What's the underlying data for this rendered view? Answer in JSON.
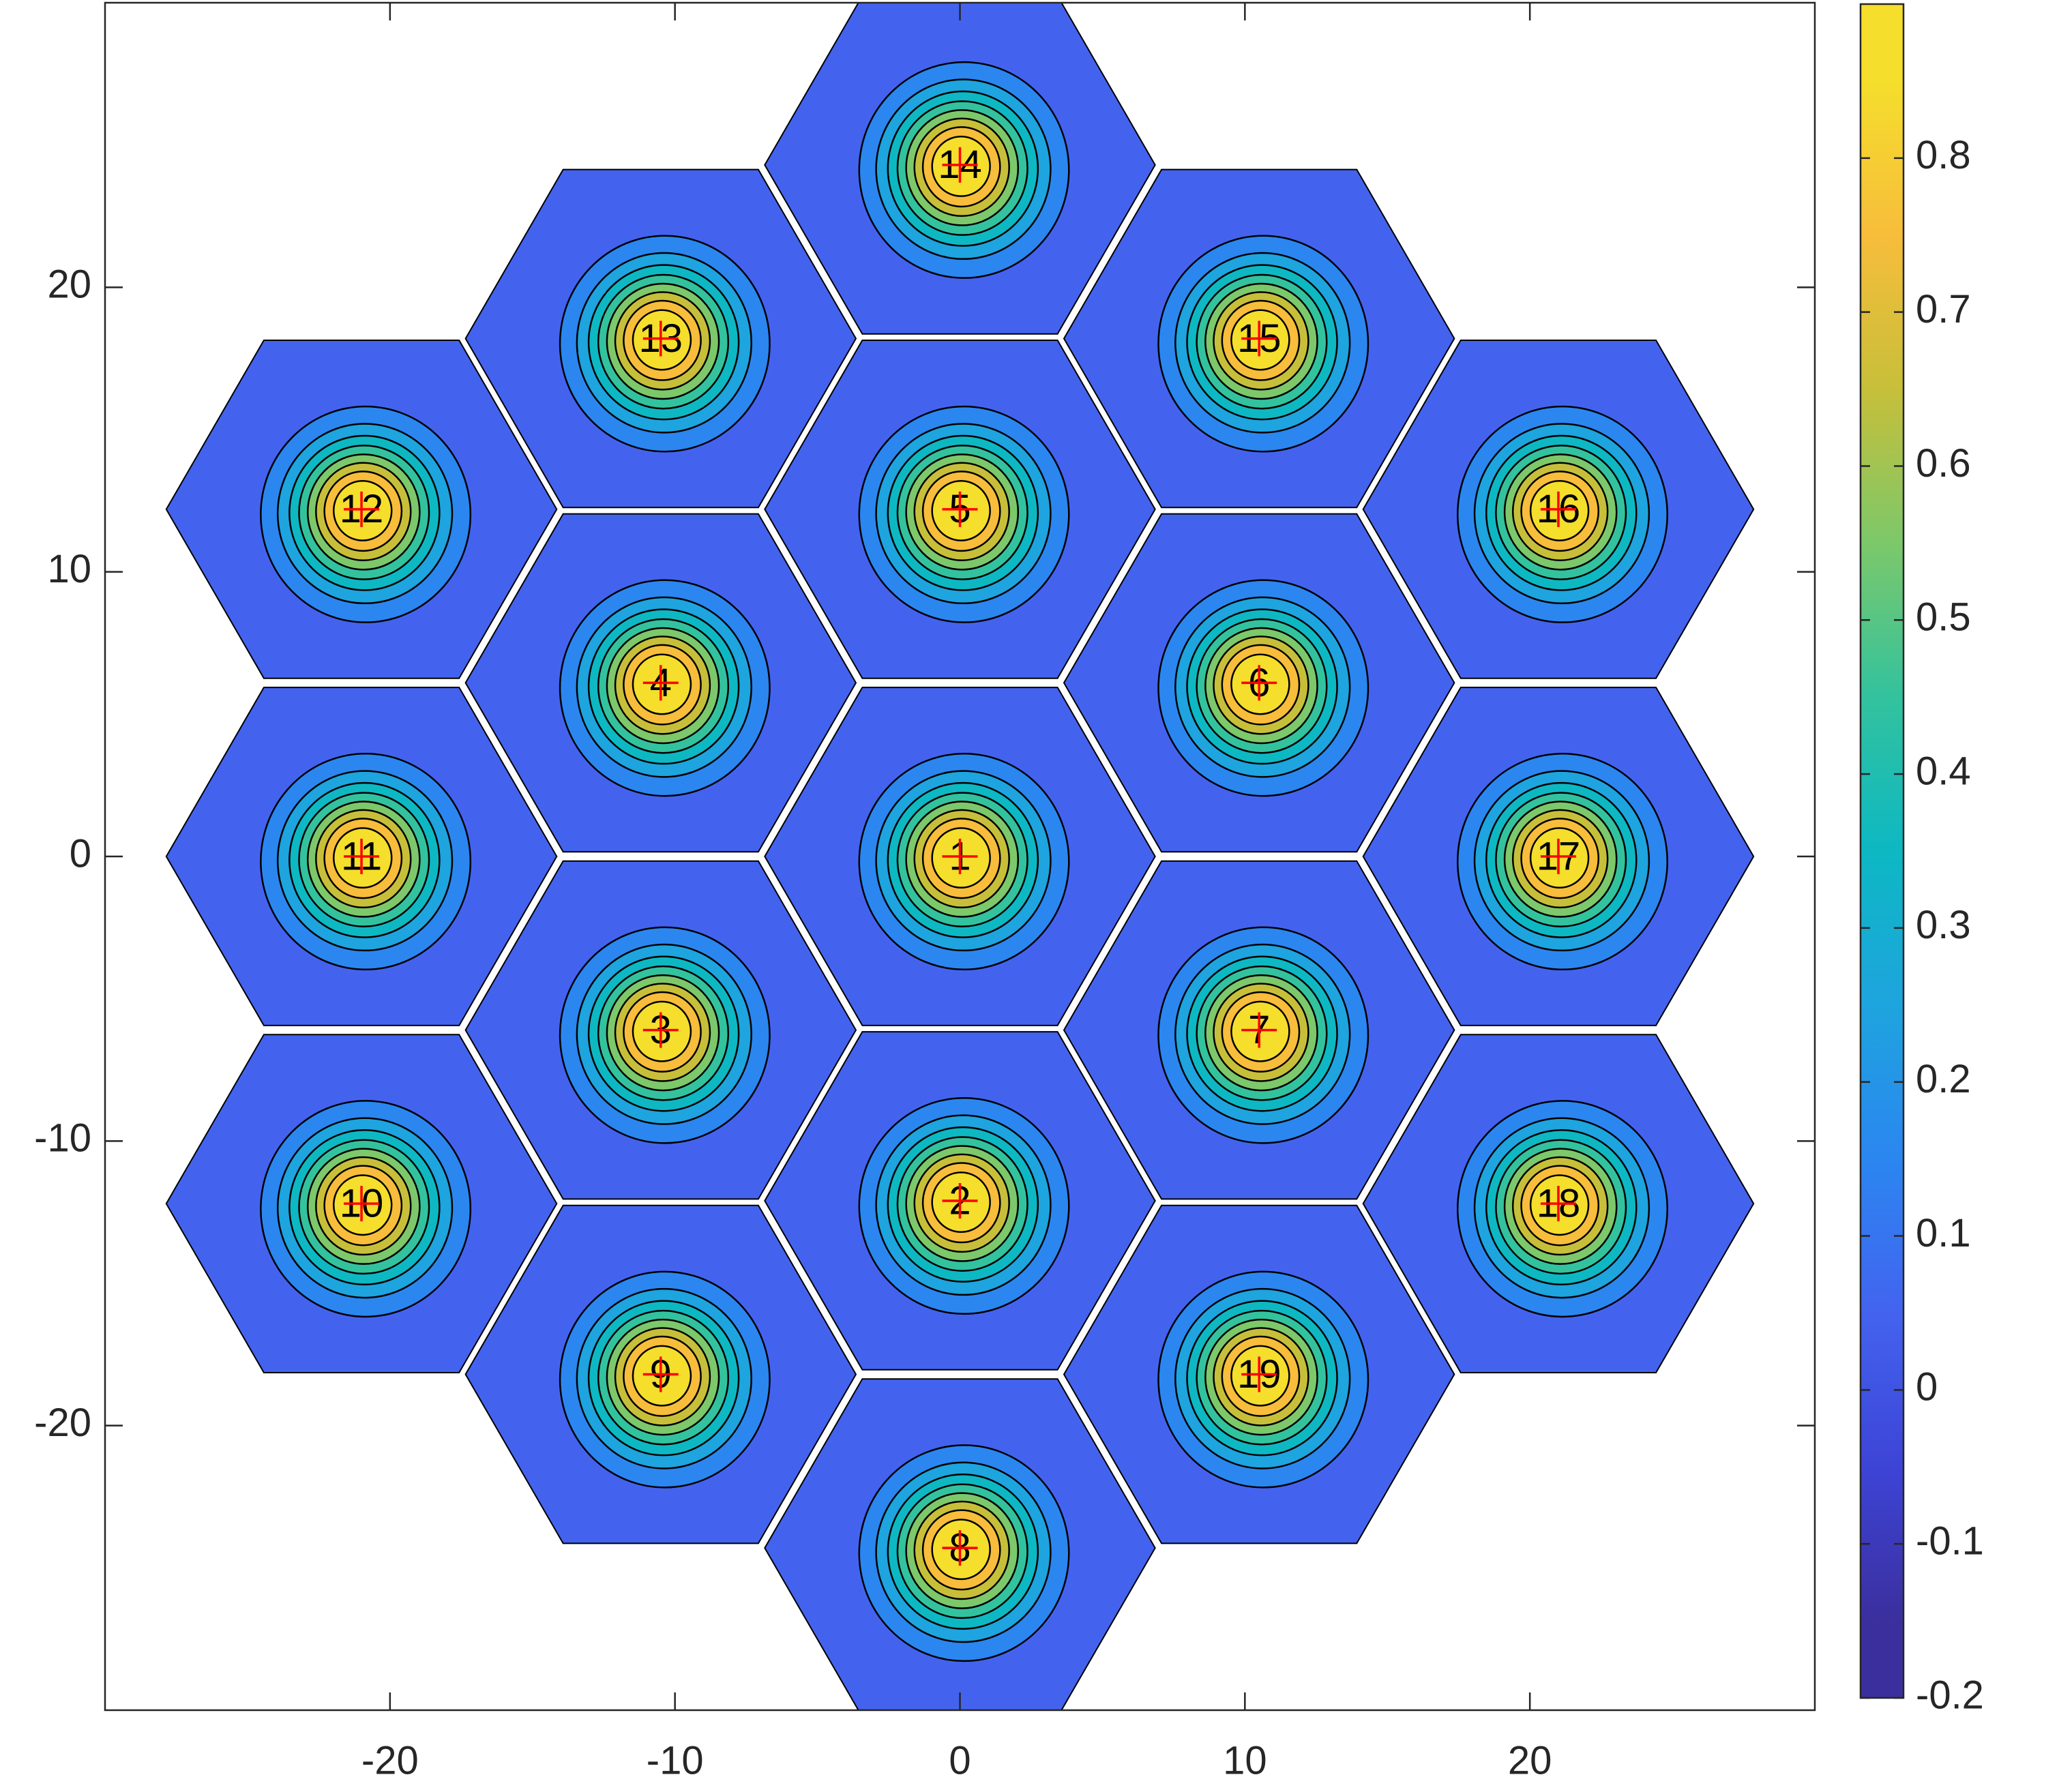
{
  "chart_data": {
    "type": "hexcontour",
    "xlim": [
      -30,
      30
    ],
    "ylim": [
      -30,
      30
    ],
    "xticks": [
      -20,
      -10,
      0,
      10,
      20
    ],
    "yticks": [
      -20,
      -10,
      0,
      10,
      20
    ],
    "marker_color": "#ff0000",
    "cells": [
      {
        "label": "1",
        "x": 0,
        "y": 0
      },
      {
        "label": "2",
        "x": 0,
        "y": -12.1
      },
      {
        "label": "3",
        "x": -10.5,
        "y": -6.1
      },
      {
        "label": "4",
        "x": -10.5,
        "y": 6.1
      },
      {
        "label": "5",
        "x": 0,
        "y": 12.2
      },
      {
        "label": "6",
        "x": 10.5,
        "y": 6.1
      },
      {
        "label": "7",
        "x": 10.5,
        "y": -6.1
      },
      {
        "label": "8",
        "x": 0,
        "y": -24.3
      },
      {
        "label": "9",
        "x": -10.5,
        "y": -18.2
      },
      {
        "label": "10",
        "x": -21,
        "y": -12.2
      },
      {
        "label": "11",
        "x": -21,
        "y": 0
      },
      {
        "label": "12",
        "x": -21,
        "y": 12.2
      },
      {
        "label": "13",
        "x": -10.5,
        "y": 18.2
      },
      {
        "label": "14",
        "x": 0,
        "y": 24.3
      },
      {
        "label": "15",
        "x": 10.5,
        "y": 18.2
      },
      {
        "label": "16",
        "x": 21,
        "y": 12.2
      },
      {
        "label": "17",
        "x": 21,
        "y": 0
      },
      {
        "label": "18",
        "x": 21,
        "y": -12.2
      },
      {
        "label": "19",
        "x": 10.5,
        "y": -18.2
      }
    ],
    "colorbar": {
      "clim": [
        -0.2,
        0.9
      ],
      "ticks": [
        -0.2,
        -0.1,
        0,
        0.1,
        0.2,
        0.3,
        0.4,
        0.5,
        0.6,
        0.7,
        0.8
      ],
      "colors": [
        "#3b2f9e",
        "#3d44d6",
        "#4363ef",
        "#2b86f0",
        "#1ea4de",
        "#0db8c3",
        "#33c29e",
        "#7cc86a",
        "#c7bf3a",
        "#f7bd3b",
        "#f5de2c"
      ]
    }
  }
}
